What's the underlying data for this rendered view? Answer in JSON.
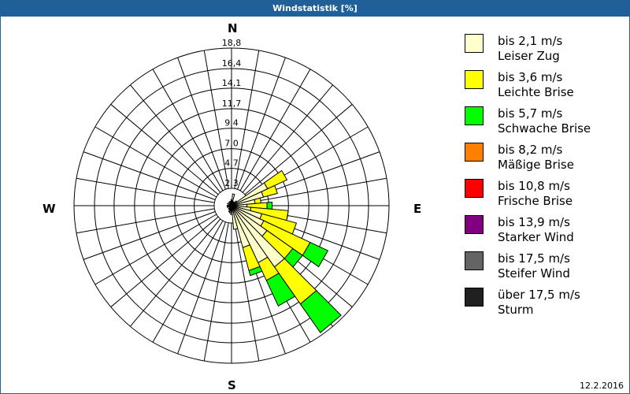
{
  "window": {
    "title": "Windstatistik [%]",
    "date": "12.2.2016"
  },
  "cardinals": {
    "n": "N",
    "e": "E",
    "s": "S",
    "w": "W"
  },
  "rings": [
    "2,3",
    "4,7",
    "7,0",
    "9,4",
    "11,7",
    "14,1",
    "16,4",
    "18,8"
  ],
  "legend": [
    {
      "range": "bis 2,1 m/s",
      "name": "Leiser Zug",
      "color": "#ffffcc"
    },
    {
      "range": "bis 3,6 m/s",
      "name": "Leichte Brise",
      "color": "#ffff00"
    },
    {
      "range": "bis 5,7 m/s",
      "name": "Schwache Brise",
      "color": "#00ff00"
    },
    {
      "range": "bis 8,2 m/s",
      "name": "Mäßige Brise",
      "color": "#ff8000"
    },
    {
      "range": "bis 10,8 m/s",
      "name": "Frische Brise",
      "color": "#ff0000"
    },
    {
      "range": "bis 13,9 m/s",
      "name": "Starker Wind",
      "color": "#800080"
    },
    {
      "range": "bis 17,5 m/s",
      "name": "Steifer Wind",
      "color": "#646464"
    },
    {
      "range": "über 17,5 m/s",
      "name": "Sturm",
      "color": "#202020"
    }
  ],
  "chart_data": {
    "type": "polar-bar",
    "title": "Windstatistik [%]",
    "unit": "%",
    "rlim": [
      0,
      18.8
    ],
    "ring_ticks": [
      2.35,
      4.7,
      7.0,
      9.4,
      11.7,
      14.1,
      16.4,
      18.8
    ],
    "sector_width_deg": 10,
    "series_names": [
      "Leiser Zug",
      "Leichte Brise",
      "Schwache Brise"
    ],
    "note": "cumulative percent at outer edge of each speed band, by compass bearing",
    "sectors": [
      {
        "dir": 0,
        "cum": [
          0.8
        ]
      },
      {
        "dir": 10,
        "cum": [
          1.6
        ]
      },
      {
        "dir": 20,
        "cum": [
          0.6
        ]
      },
      {
        "dir": 40,
        "cum": [
          0.6
        ]
      },
      {
        "dir": 50,
        "cum": [
          0.9
        ]
      },
      {
        "dir": 60,
        "cum": [
          5.0,
          7.5
        ]
      },
      {
        "dir": 70,
        "cum": [
          4.2,
          5.9
        ]
      },
      {
        "dir": 80,
        "cum": [
          3.1,
          3.8
        ]
      },
      {
        "dir": 90,
        "cum": [
          2.1,
          4.5,
          5.1
        ]
      },
      {
        "dir": 100,
        "cum": [
          2.6,
          7.0
        ]
      },
      {
        "dir": 110,
        "cum": [
          4.0,
          8.2
        ]
      },
      {
        "dir": 120,
        "cum": [
          4.5,
          10.5,
          12.8
        ]
      },
      {
        "dir": 130,
        "cum": [
          5.4,
          9.1,
          10.5
        ]
      },
      {
        "dir": 140,
        "cum": [
          9.1,
          14.4,
          18.5
        ]
      },
      {
        "dir": 150,
        "cum": [
          7.7,
          10.0,
          13.3
        ]
      },
      {
        "dir": 160,
        "cum": [
          5.4,
          8.2,
          8.8
        ]
      },
      {
        "dir": 170,
        "cum": [
          3.1
        ]
      },
      {
        "dir": 180,
        "cum": [
          1.2
        ]
      },
      {
        "dir": 190,
        "cum": [
          1.0
        ]
      },
      {
        "dir": 200,
        "cum": [
          0.9
        ]
      },
      {
        "dir": 220,
        "cum": [
          0.6
        ]
      },
      {
        "dir": 250,
        "cum": [
          0.6
        ]
      },
      {
        "dir": 270,
        "cum": [
          0.6
        ]
      },
      {
        "dir": 300,
        "cum": [
          0.6
        ]
      },
      {
        "dir": 330,
        "cum": [
          0.6
        ]
      },
      {
        "dir": 350,
        "cum": [
          0.6
        ]
      }
    ]
  }
}
